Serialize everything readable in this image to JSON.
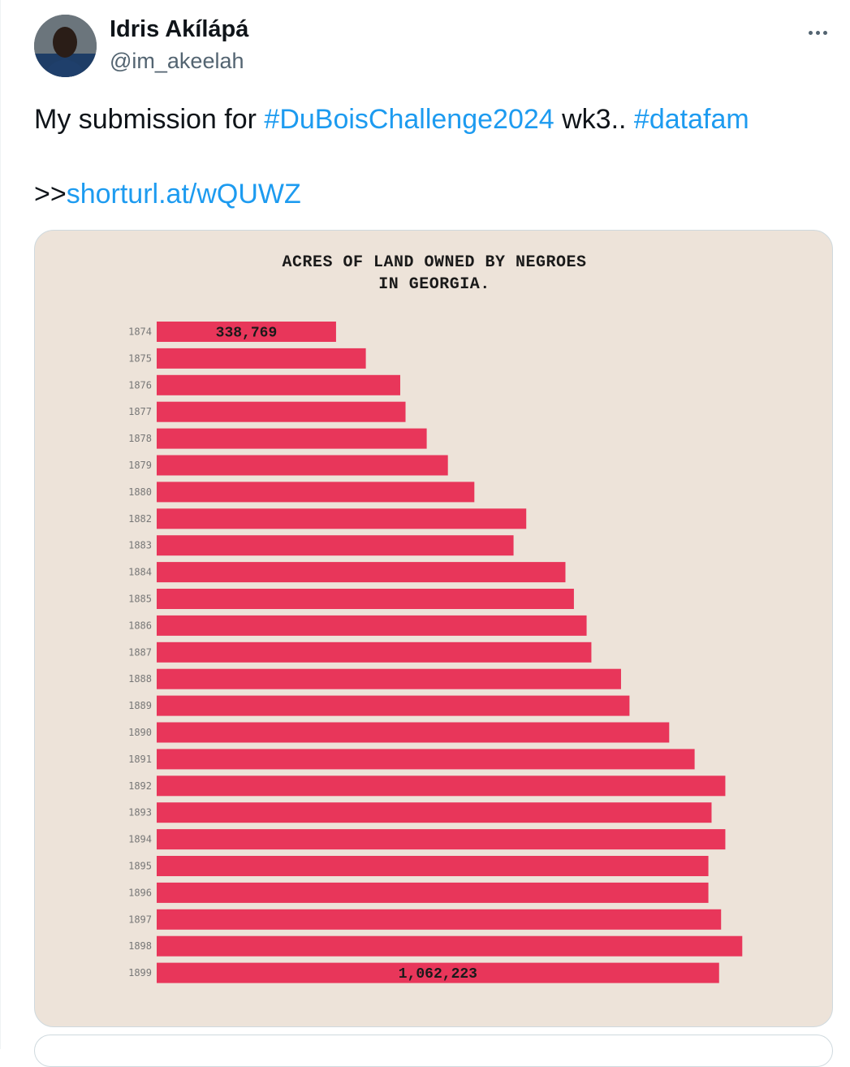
{
  "author": {
    "display_name": "Idris Akílápá",
    "handle": "@im_akeelah",
    "avatar_icon": "user-avatar-photo"
  },
  "more_icon": "more-horizontal-icon",
  "tweet": {
    "text_before": "My submission for ",
    "hashtag1": "#DuBoisChallenge2024",
    "text_middle": " wk3.. ",
    "hashtag2": "#datafam",
    "prefix": ">>",
    "link": "shorturl.at/wQUWZ"
  },
  "colors": {
    "link": "#1d9bf0",
    "bar": "#e8365a",
    "chart_bg": "#ede3d9"
  },
  "chart_data": {
    "type": "bar",
    "orientation": "horizontal",
    "title": "ACRES OF LAND OWNED BY NEGROES\nIN GEORGIA.",
    "categories": [
      "1874",
      "1875",
      "1876",
      "1877",
      "1878",
      "1879",
      "1880",
      "1882",
      "1883",
      "1884",
      "1885",
      "1886",
      "1887",
      "1888",
      "1889",
      "1890",
      "1891",
      "1892",
      "1893",
      "1894",
      "1895",
      "1896",
      "1897",
      "1898",
      "1899"
    ],
    "values": [
      338769,
      395000,
      460000,
      470000,
      510000,
      550000,
      600000,
      698000,
      674000,
      772000,
      788000,
      812000,
      821000,
      877000,
      893000,
      968000,
      1016000,
      1074000,
      1048000,
      1074000,
      1042000,
      1042000,
      1066000,
      1106000,
      1062223
    ],
    "data_labels": {
      "0": "338,769",
      "24": "1,062,223"
    },
    "xlim": [
      0,
      1150000
    ],
    "grid": false,
    "legend": "none"
  }
}
